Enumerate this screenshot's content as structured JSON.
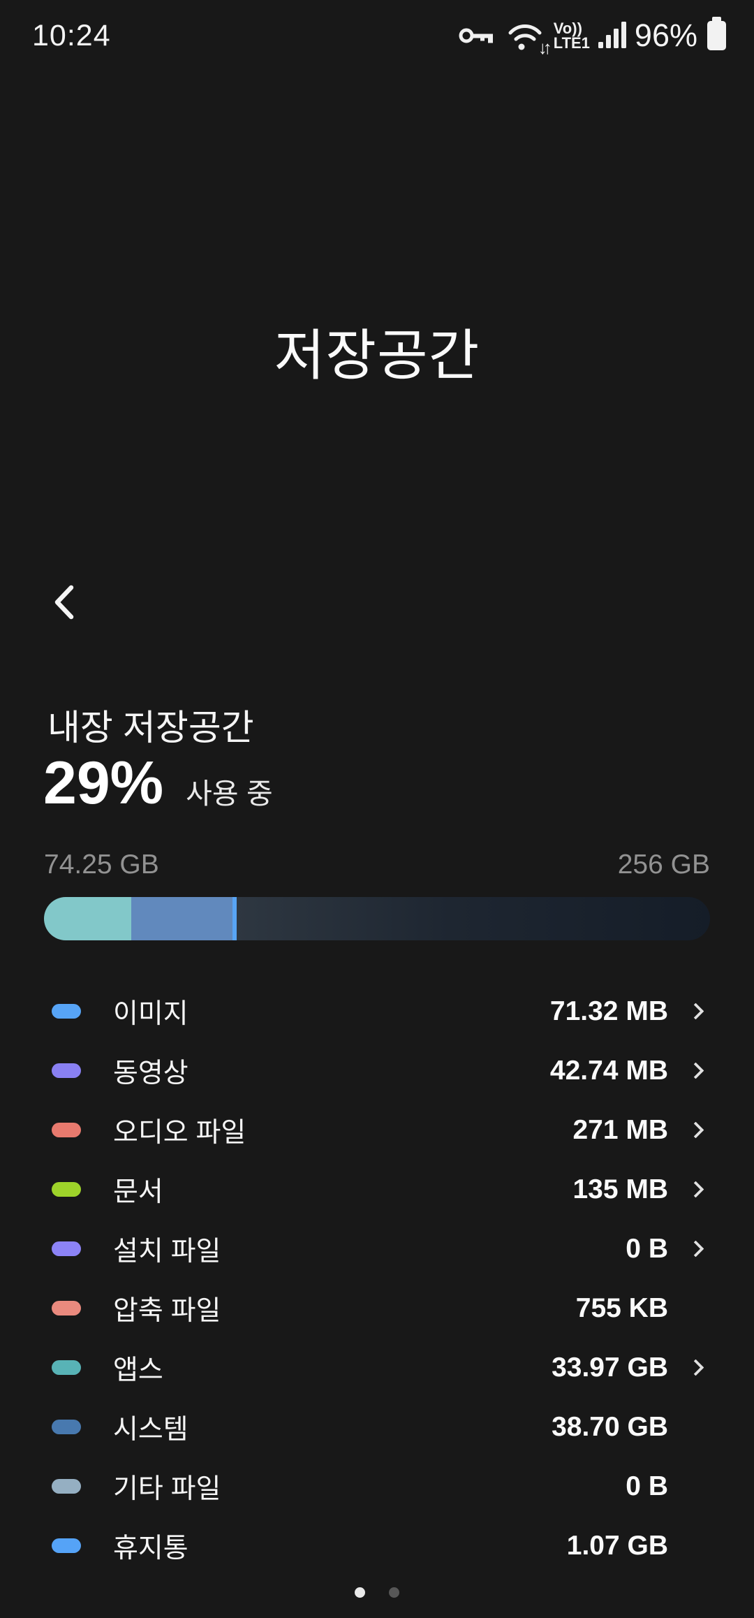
{
  "status_bar": {
    "time": "10:24",
    "battery_percent": "96%",
    "volte_line1": "Vo))",
    "volte_line2": "LTE1",
    "wifi_arrows": "↓↑"
  },
  "header": {
    "title": "저장공간"
  },
  "storage": {
    "section_title": "내장 저장공간",
    "percent_used": "29%",
    "used_suffix": "사용 중",
    "used_amount": "74.25 GB",
    "total_amount": "256 GB",
    "bar": {
      "segments": [
        {
          "name": "apps-used",
          "color": "#82c8c9",
          "width_pct": 13.1
        },
        {
          "name": "system-used",
          "color": "#6189bd",
          "width_pct": 15.2
        },
        {
          "name": "other-used",
          "color": "#58a5f5",
          "width_pct": 0.6
        }
      ],
      "free_gradient": [
        "#2e3741",
        "#1e2631",
        "#151d28"
      ]
    }
  },
  "categories": [
    {
      "label": "이미지",
      "value": "71.32 MB",
      "color": "#57a4f6",
      "chevron": true
    },
    {
      "label": "동영상",
      "value": "42.74 MB",
      "color": "#8980f2",
      "chevron": true
    },
    {
      "label": "오디오 파일",
      "value": "271 MB",
      "color": "#e87a6e",
      "chevron": true
    },
    {
      "label": "문서",
      "value": "135 MB",
      "color": "#9ed32a",
      "chevron": true
    },
    {
      "label": "설치 파일",
      "value": "0 B",
      "color": "#8c83f6",
      "chevron": true
    },
    {
      "label": "압축 파일",
      "value": "755 KB",
      "color": "#ea8a7e",
      "chevron": false
    },
    {
      "label": "앱스",
      "value": "33.97 GB",
      "color": "#58b3b6",
      "chevron": true
    },
    {
      "label": "시스템",
      "value": "38.70 GB",
      "color": "#4879af",
      "chevron": false
    },
    {
      "label": "기타 파일",
      "value": "0 B",
      "color": "#95afc2",
      "chevron": false
    },
    {
      "label": "휴지통",
      "value": "1.07 GB",
      "color": "#55a3f7",
      "chevron": false
    }
  ],
  "pagination": {
    "dot_count": 2,
    "active_index": 0,
    "active_color": "#e9e9e9",
    "inactive_color": "#575757"
  }
}
